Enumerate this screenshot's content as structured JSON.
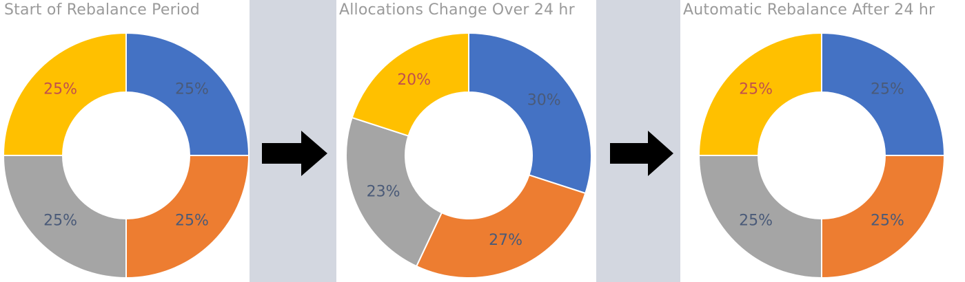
{
  "colors": {
    "blue": "#4472c4",
    "orange": "#ed7d31",
    "gray": "#a5a5a5",
    "yellow": "#ffc000",
    "label_light": "#4a5a78",
    "label_warm": "#c0504d",
    "gap_bg": "#d3d7e0",
    "arrow": "#000000"
  },
  "chart_data": [
    {
      "type": "pie",
      "title": "Start of Rebalance Period",
      "slices": [
        {
          "value": 25,
          "label": "25%",
          "color": "#4472c4"
        },
        {
          "value": 25,
          "label": "25%",
          "color": "#ed7d31"
        },
        {
          "value": 25,
          "label": "25%",
          "color": "#a5a5a5"
        },
        {
          "value": 25,
          "label": "25%",
          "color": "#ffc000"
        }
      ]
    },
    {
      "type": "pie",
      "title": "Allocations Change Over 24 hr",
      "slices": [
        {
          "value": 30,
          "label": "30%",
          "color": "#4472c4"
        },
        {
          "value": 27,
          "label": "27%",
          "color": "#ed7d31"
        },
        {
          "value": 23,
          "label": "23%",
          "color": "#a5a5a5"
        },
        {
          "value": 20,
          "label": "20%",
          "color": "#ffc000"
        }
      ]
    },
    {
      "type": "pie",
      "title": "Automatic Rebalance After 24 hr",
      "slices": [
        {
          "value": 25,
          "label": "25%",
          "color": "#4472c4"
        },
        {
          "value": 25,
          "label": "25%",
          "color": "#ed7d31"
        },
        {
          "value": 25,
          "label": "25%",
          "color": "#a5a5a5"
        },
        {
          "value": 25,
          "label": "25%",
          "color": "#ffc000"
        }
      ]
    }
  ],
  "arrows": [
    {
      "icon": "right-arrow-icon"
    },
    {
      "icon": "right-arrow-icon"
    }
  ]
}
